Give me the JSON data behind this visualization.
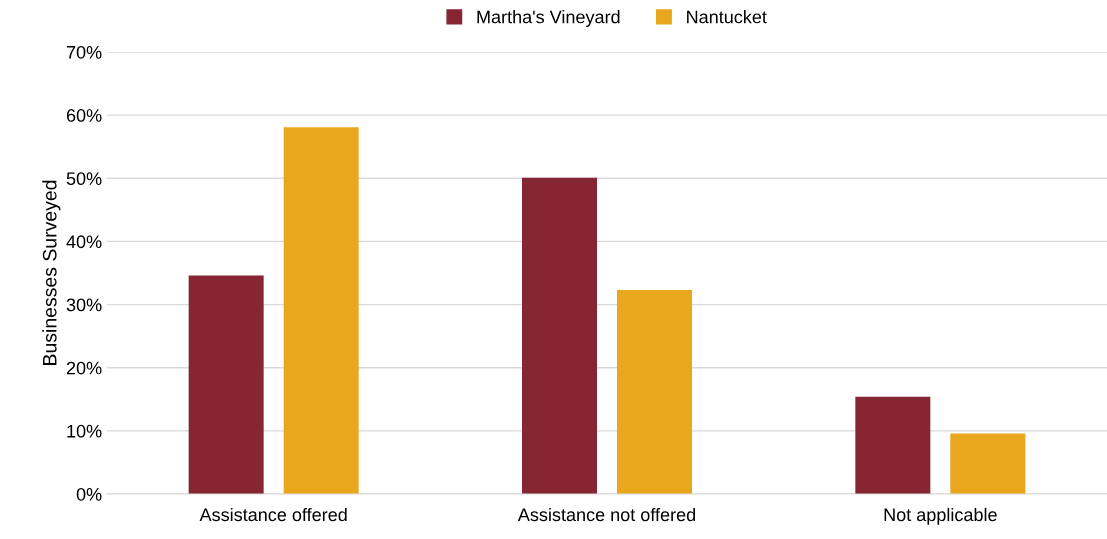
{
  "chart_data": {
    "type": "bar",
    "ylabel": "Businesses Surveyed",
    "categories": [
      "Assistance offered",
      "Assistance not offered",
      "Not applicable"
    ],
    "series": [
      {
        "name": "Martha's Vineyard",
        "color": "#862633",
        "values": [
          34.6,
          50.1,
          15.4
        ]
      },
      {
        "name": "Nantucket",
        "color": "#e8a71c",
        "values": [
          58.1,
          32.3,
          9.6
        ]
      }
    ],
    "ylim": [
      0,
      70
    ],
    "yticks": [
      {
        "value": 0,
        "label": "0%"
      },
      {
        "value": 10,
        "label": "10%"
      },
      {
        "value": 20,
        "label": "20%"
      },
      {
        "value": 30,
        "label": "30%"
      },
      {
        "value": 40,
        "label": "40%"
      },
      {
        "value": 50,
        "label": "50%"
      },
      {
        "value": 60,
        "label": "60%"
      },
      {
        "value": 70,
        "label": "70%"
      }
    ],
    "grid": "y",
    "legend": "top"
  }
}
